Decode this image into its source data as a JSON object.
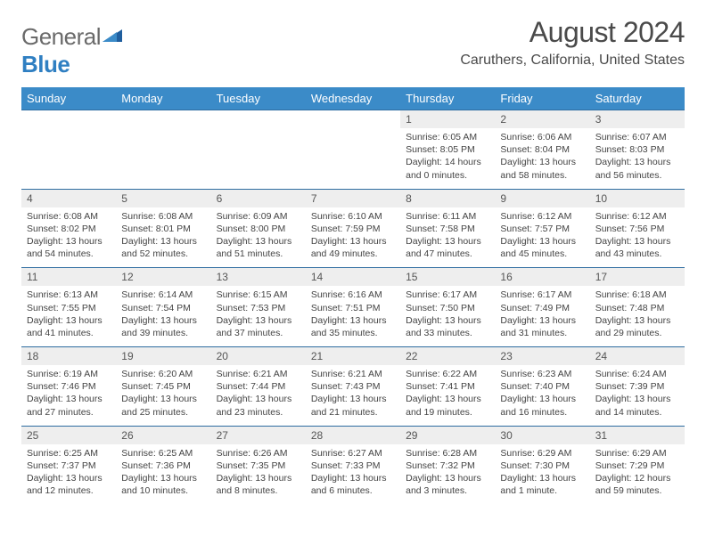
{
  "logo": {
    "text1": "General",
    "text2": "Blue"
  },
  "title": "August 2024",
  "location": "Caruthers, California, United States",
  "colors": {
    "header_bg": "#3b8bc8",
    "header_text": "#ffffff",
    "daynum_bg": "#eeeeee",
    "border": "#2e6ca0",
    "logo_gray": "#6a6a6a",
    "logo_blue": "#2f7fc2"
  },
  "dow": [
    "Sunday",
    "Monday",
    "Tuesday",
    "Wednesday",
    "Thursday",
    "Friday",
    "Saturday"
  ],
  "weeks": [
    [
      null,
      null,
      null,
      null,
      {
        "n": "1",
        "sr": "6:05 AM",
        "ss": "8:05 PM",
        "dl": "14 hours and 0 minutes."
      },
      {
        "n": "2",
        "sr": "6:06 AM",
        "ss": "8:04 PM",
        "dl": "13 hours and 58 minutes."
      },
      {
        "n": "3",
        "sr": "6:07 AM",
        "ss": "8:03 PM",
        "dl": "13 hours and 56 minutes."
      }
    ],
    [
      {
        "n": "4",
        "sr": "6:08 AM",
        "ss": "8:02 PM",
        "dl": "13 hours and 54 minutes."
      },
      {
        "n": "5",
        "sr": "6:08 AM",
        "ss": "8:01 PM",
        "dl": "13 hours and 52 minutes."
      },
      {
        "n": "6",
        "sr": "6:09 AM",
        "ss": "8:00 PM",
        "dl": "13 hours and 51 minutes."
      },
      {
        "n": "7",
        "sr": "6:10 AM",
        "ss": "7:59 PM",
        "dl": "13 hours and 49 minutes."
      },
      {
        "n": "8",
        "sr": "6:11 AM",
        "ss": "7:58 PM",
        "dl": "13 hours and 47 minutes."
      },
      {
        "n": "9",
        "sr": "6:12 AM",
        "ss": "7:57 PM",
        "dl": "13 hours and 45 minutes."
      },
      {
        "n": "10",
        "sr": "6:12 AM",
        "ss": "7:56 PM",
        "dl": "13 hours and 43 minutes."
      }
    ],
    [
      {
        "n": "11",
        "sr": "6:13 AM",
        "ss": "7:55 PM",
        "dl": "13 hours and 41 minutes."
      },
      {
        "n": "12",
        "sr": "6:14 AM",
        "ss": "7:54 PM",
        "dl": "13 hours and 39 minutes."
      },
      {
        "n": "13",
        "sr": "6:15 AM",
        "ss": "7:53 PM",
        "dl": "13 hours and 37 minutes."
      },
      {
        "n": "14",
        "sr": "6:16 AM",
        "ss": "7:51 PM",
        "dl": "13 hours and 35 minutes."
      },
      {
        "n": "15",
        "sr": "6:17 AM",
        "ss": "7:50 PM",
        "dl": "13 hours and 33 minutes."
      },
      {
        "n": "16",
        "sr": "6:17 AM",
        "ss": "7:49 PM",
        "dl": "13 hours and 31 minutes."
      },
      {
        "n": "17",
        "sr": "6:18 AM",
        "ss": "7:48 PM",
        "dl": "13 hours and 29 minutes."
      }
    ],
    [
      {
        "n": "18",
        "sr": "6:19 AM",
        "ss": "7:46 PM",
        "dl": "13 hours and 27 minutes."
      },
      {
        "n": "19",
        "sr": "6:20 AM",
        "ss": "7:45 PM",
        "dl": "13 hours and 25 minutes."
      },
      {
        "n": "20",
        "sr": "6:21 AM",
        "ss": "7:44 PM",
        "dl": "13 hours and 23 minutes."
      },
      {
        "n": "21",
        "sr": "6:21 AM",
        "ss": "7:43 PM",
        "dl": "13 hours and 21 minutes."
      },
      {
        "n": "22",
        "sr": "6:22 AM",
        "ss": "7:41 PM",
        "dl": "13 hours and 19 minutes."
      },
      {
        "n": "23",
        "sr": "6:23 AM",
        "ss": "7:40 PM",
        "dl": "13 hours and 16 minutes."
      },
      {
        "n": "24",
        "sr": "6:24 AM",
        "ss": "7:39 PM",
        "dl": "13 hours and 14 minutes."
      }
    ],
    [
      {
        "n": "25",
        "sr": "6:25 AM",
        "ss": "7:37 PM",
        "dl": "13 hours and 12 minutes."
      },
      {
        "n": "26",
        "sr": "6:25 AM",
        "ss": "7:36 PM",
        "dl": "13 hours and 10 minutes."
      },
      {
        "n": "27",
        "sr": "6:26 AM",
        "ss": "7:35 PM",
        "dl": "13 hours and 8 minutes."
      },
      {
        "n": "28",
        "sr": "6:27 AM",
        "ss": "7:33 PM",
        "dl": "13 hours and 6 minutes."
      },
      {
        "n": "29",
        "sr": "6:28 AM",
        "ss": "7:32 PM",
        "dl": "13 hours and 3 minutes."
      },
      {
        "n": "30",
        "sr": "6:29 AM",
        "ss": "7:30 PM",
        "dl": "13 hours and 1 minute."
      },
      {
        "n": "31",
        "sr": "6:29 AM",
        "ss": "7:29 PM",
        "dl": "12 hours and 59 minutes."
      }
    ]
  ],
  "labels": {
    "sunrise": "Sunrise:",
    "sunset": "Sunset:",
    "daylight": "Daylight:"
  }
}
